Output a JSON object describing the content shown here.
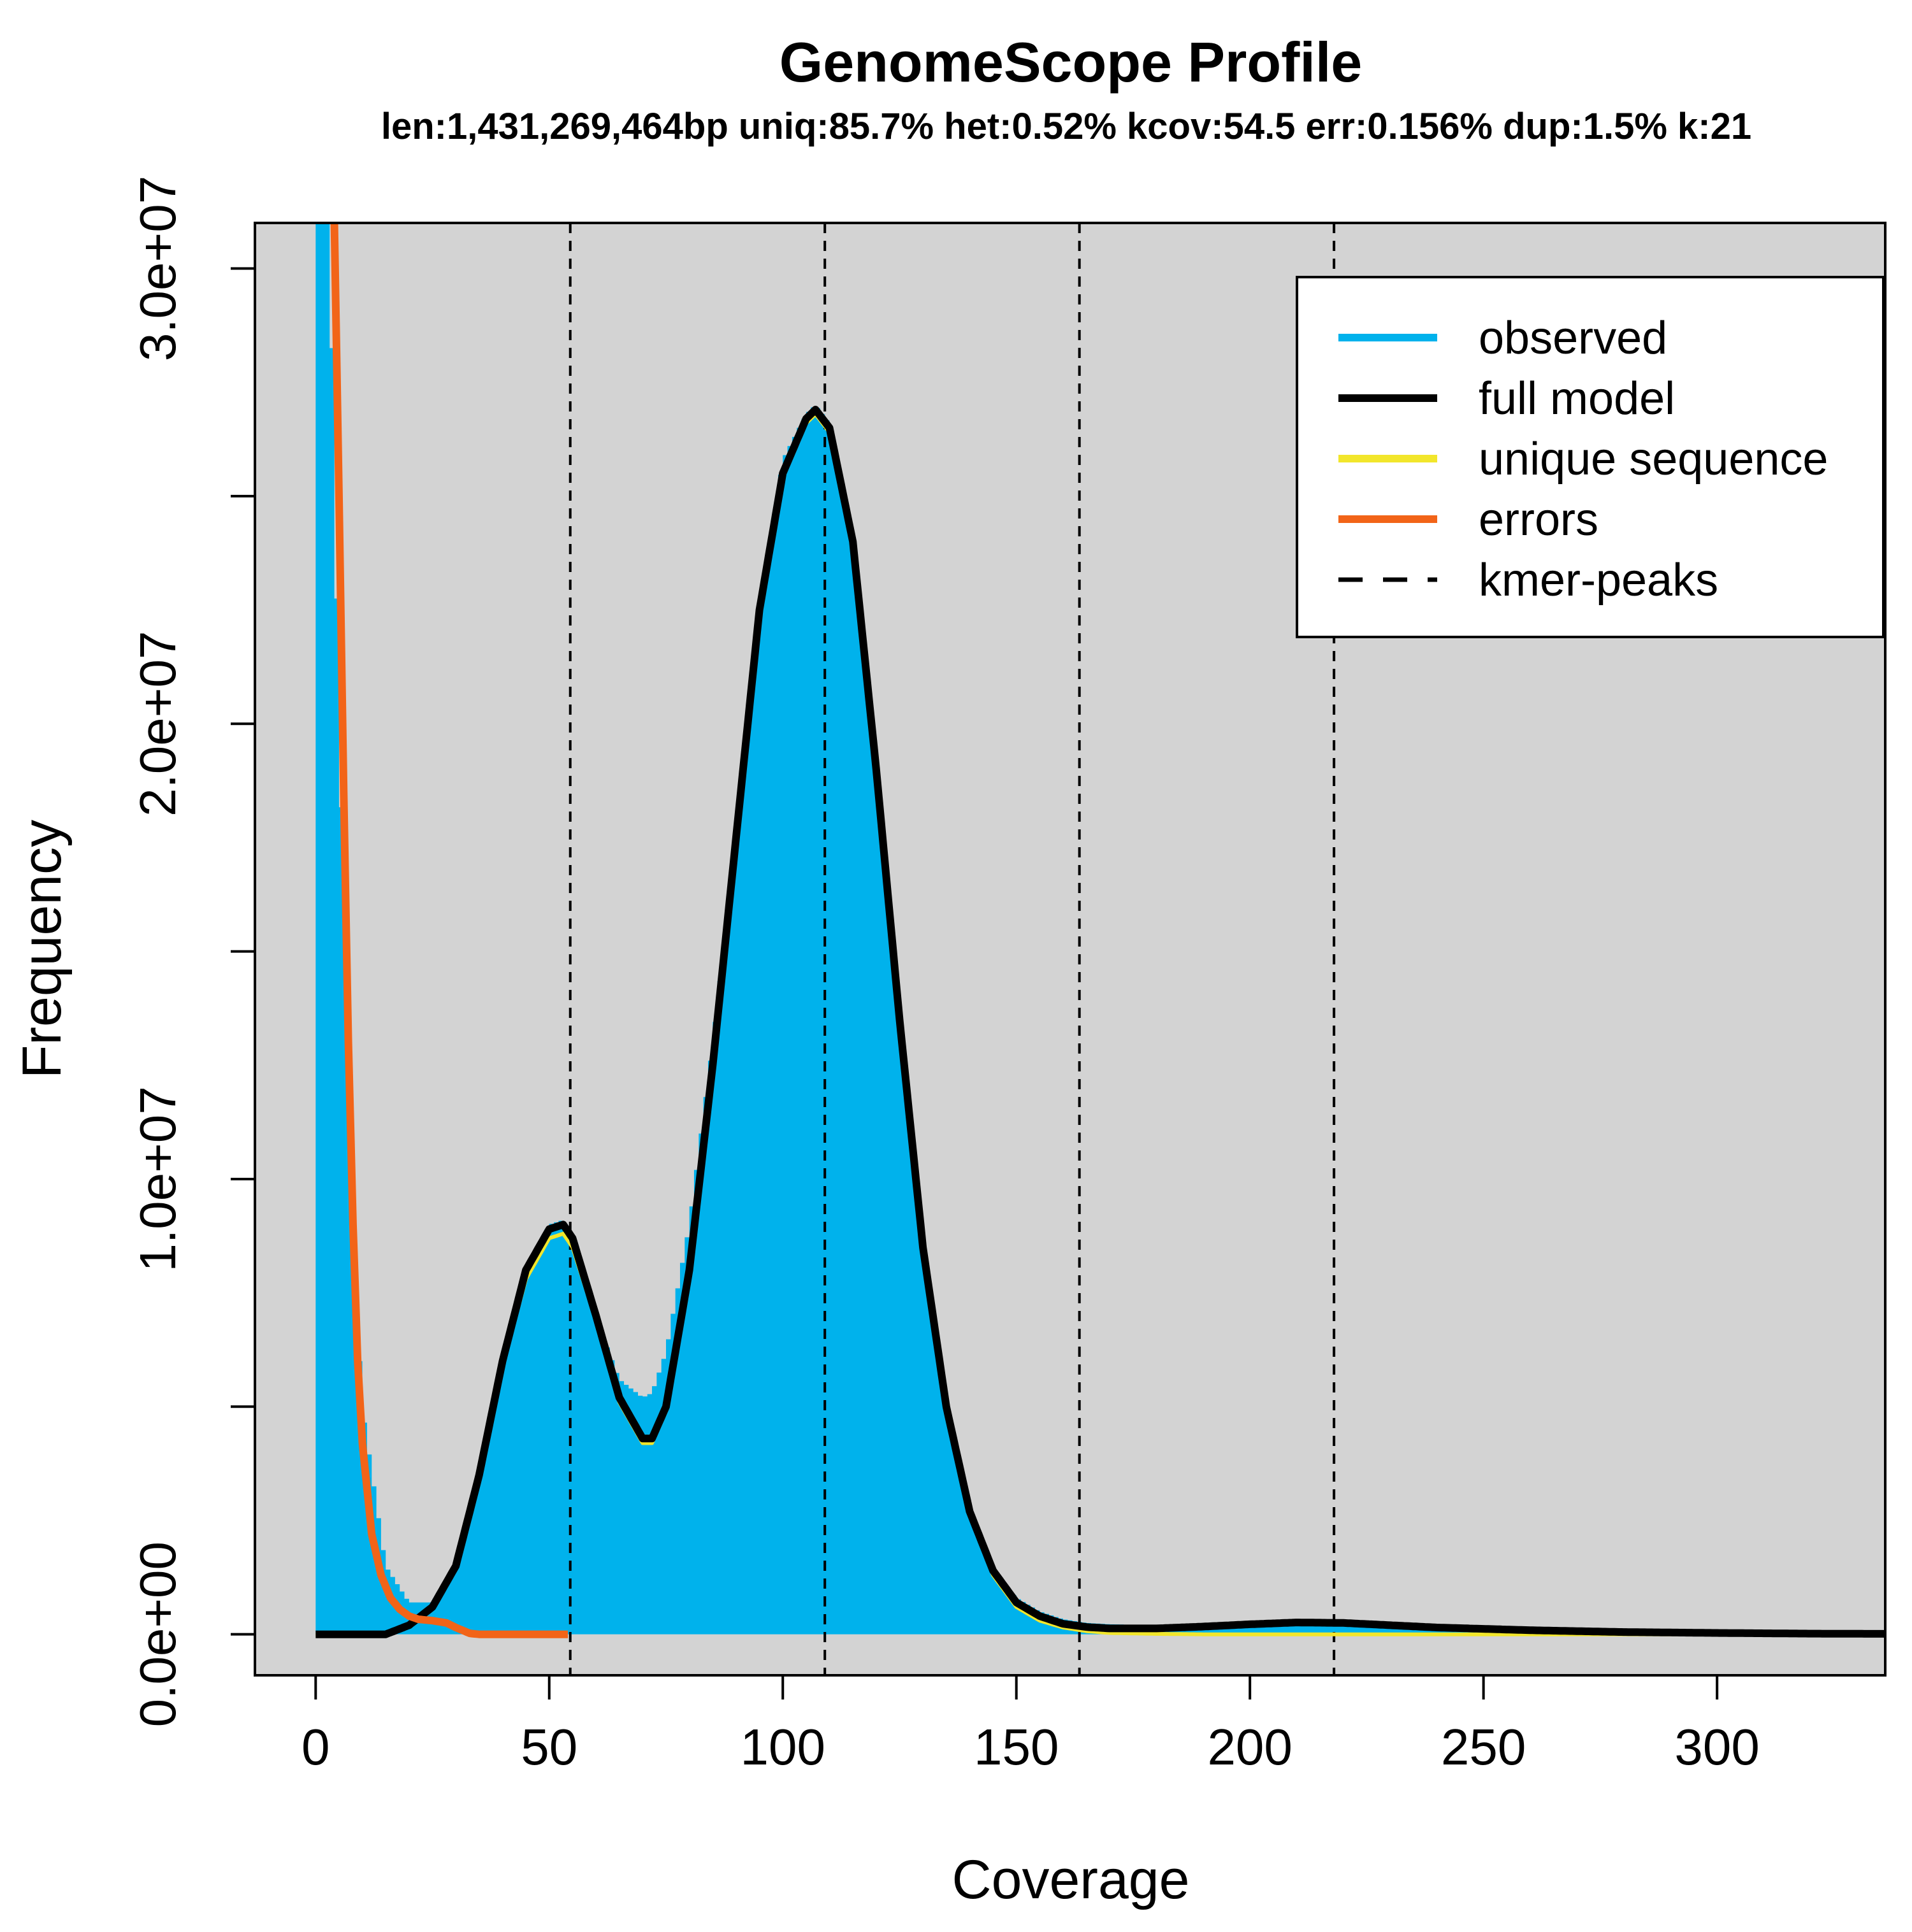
{
  "chart_data": {
    "type": "area",
    "title": "GenomeScope Profile",
    "subtitle": "len:1,431,269,464bp uniq:85.7%  het:0.52% kcov:54.5 err:0.156%  dup:1.5%  k:21",
    "xlabel": "Coverage",
    "ylabel": "Frequency",
    "xlim": [
      -13,
      336
    ],
    "ylim": [
      -900000,
      31000000
    ],
    "x_ticks": [
      0,
      50,
      100,
      150,
      200,
      250,
      300
    ],
    "x_tick_labels": [
      "0",
      "50",
      "100",
      "150",
      "200",
      "250",
      "300"
    ],
    "y_ticks": [
      0,
      5000000,
      10000000,
      15000000,
      20000000,
      25000000,
      30000000
    ],
    "y_tick_labels": [
      "0.0e+00",
      "",
      "1.0e+07",
      "",
      "2.0e+07",
      "",
      "3.0e+07"
    ],
    "grid": false,
    "background": "#d3d3d3",
    "legend": {
      "placement": "top-right",
      "entries": [
        {
          "label": "observed",
          "color": "#00b2ec",
          "style": "solid"
        },
        {
          "label": "full model",
          "color": "#000000",
          "style": "solid"
        },
        {
          "label": "unique sequence",
          "color": "#f2e62b",
          "style": "solid"
        },
        {
          "label": "errors",
          "color": "#f26418",
          "style": "solid"
        },
        {
          "label": "kmer-peaks",
          "color": "#000000",
          "style": "dashed"
        }
      ]
    },
    "kmer_peaks": [
      54.5,
      109,
      163.5,
      218
    ],
    "series": [
      {
        "name": "observed",
        "color": "#00b2ec",
        "style": "histogram",
        "x": [
          0,
          1,
          2,
          3,
          5,
          8,
          10,
          15,
          20,
          25,
          30,
          35,
          40,
          45,
          50,
          53,
          55,
          60,
          65,
          70,
          72,
          75,
          80,
          85,
          90,
          95,
          100,
          105,
          107,
          110,
          115,
          120,
          125,
          130,
          135,
          140,
          145,
          150,
          155,
          160,
          165,
          170,
          180,
          190,
          200,
          210,
          220,
          230,
          240,
          260,
          280,
          300,
          320,
          336
        ],
        "y": [
          31000000,
          31000000,
          31000000,
          31000000,
          20000000,
          9000000,
          5000000,
          1500000,
          700000,
          700000,
          1500000,
          3500000,
          6000000,
          8000000,
          9000000,
          9100000,
          8700000,
          7000000,
          5600000,
          5200000,
          5300000,
          6200000,
          9000000,
          13000000,
          17500000,
          22500000,
          25800000,
          26800000,
          27000000,
          26600000,
          24000000,
          19000000,
          13500000,
          8500000,
          5000000,
          2700000,
          1400000,
          800000,
          500000,
          330000,
          250000,
          220000,
          200000,
          200000,
          230000,
          250000,
          240000,
          200000,
          150000,
          100000,
          60000,
          40000,
          25000,
          20000
        ]
      },
      {
        "name": "full model",
        "color": "#000000",
        "style": "line",
        "x": [
          0,
          5,
          10,
          15,
          20,
          25,
          30,
          35,
          40,
          45,
          50,
          53,
          55,
          60,
          65,
          70,
          72,
          75,
          80,
          85,
          90,
          95,
          100,
          105,
          107,
          110,
          115,
          120,
          125,
          130,
          135,
          140,
          145,
          150,
          155,
          160,
          165,
          170,
          180,
          190,
          200,
          210,
          220,
          230,
          240,
          260,
          280,
          300,
          320,
          336
        ],
        "y": [
          0,
          0,
          0,
          0,
          200000,
          600000,
          1500000,
          3500000,
          6000000,
          8000000,
          8900000,
          9000000,
          8700000,
          7000000,
          5200000,
          4300000,
          4300000,
          5000000,
          8000000,
          12500000,
          17500000,
          22500000,
          25500000,
          26700000,
          26900000,
          26500000,
          24000000,
          19000000,
          13500000,
          8500000,
          5000000,
          2700000,
          1400000,
          700000,
          400000,
          230000,
          160000,
          130000,
          130000,
          170000,
          220000,
          260000,
          250000,
          200000,
          150000,
          90000,
          50000,
          30000,
          15000,
          10000
        ]
      },
      {
        "name": "unique sequence",
        "color": "#f2e62b",
        "style": "line",
        "x": [
          0,
          5,
          10,
          15,
          20,
          25,
          30,
          35,
          40,
          45,
          50,
          53,
          55,
          60,
          65,
          70,
          72,
          75,
          80,
          85,
          90,
          95,
          100,
          105,
          107,
          110,
          115,
          120,
          125,
          130,
          135,
          140,
          145,
          150,
          155,
          160,
          165,
          170,
          180,
          190,
          200,
          220,
          240,
          260,
          280,
          300,
          320,
          336
        ],
        "y": [
          0,
          0,
          0,
          0,
          200000,
          600000,
          1500000,
          3400000,
          5900000,
          7800000,
          8700000,
          8800000,
          8500000,
          6900000,
          5100000,
          4200000,
          4200000,
          4900000,
          7900000,
          12400000,
          17400000,
          22400000,
          25400000,
          26600000,
          26800000,
          26400000,
          23900000,
          18900000,
          13400000,
          8400000,
          4900000,
          2600000,
          1300000,
          600000,
          300000,
          150000,
          70000,
          30000,
          10000,
          0,
          0,
          0,
          0,
          0,
          0,
          0,
          0,
          0
        ]
      },
      {
        "name": "errors",
        "color": "#f26418",
        "style": "line",
        "x": [
          4,
          5,
          6,
          7,
          8,
          9,
          10,
          12,
          14,
          16,
          18,
          20,
          22,
          25,
          28,
          30,
          33,
          35,
          40,
          45,
          50,
          54
        ],
        "y": [
          31000000,
          25000000,
          18500000,
          13000000,
          9000000,
          6000000,
          4200000,
          2200000,
          1300000,
          800000,
          550000,
          400000,
          330000,
          300000,
          250000,
          150000,
          20000,
          0,
          0,
          0,
          0,
          0
        ]
      }
    ]
  }
}
